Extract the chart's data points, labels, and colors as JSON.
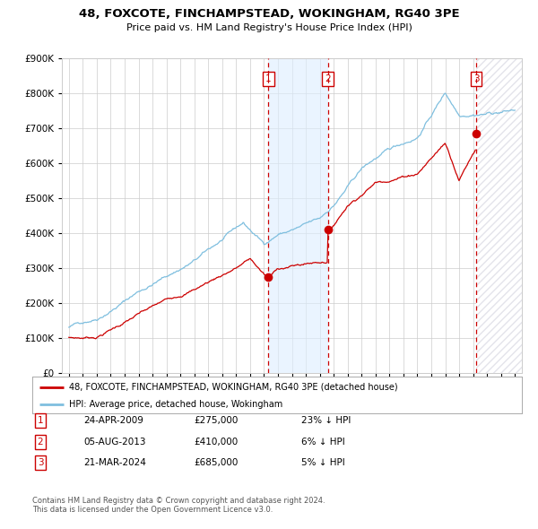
{
  "title": "48, FOXCOTE, FINCHAMPSTEAD, WOKINGHAM, RG40 3PE",
  "subtitle": "Price paid vs. HM Land Registry's House Price Index (HPI)",
  "legend_red": "48, FOXCOTE, FINCHAMPSTEAD, WOKINGHAM, RG40 3PE (detached house)",
  "legend_blue": "HPI: Average price, detached house, Wokingham",
  "footnote1": "Contains HM Land Registry data © Crown copyright and database right 2024.",
  "footnote2": "This data is licensed under the Open Government Licence v3.0.",
  "transactions": [
    {
      "num": 1,
      "date": "24-APR-2009",
      "price": 275000,
      "pct": "23%",
      "dir": "↓"
    },
    {
      "num": 2,
      "date": "05-AUG-2013",
      "price": 410000,
      "pct": "6%",
      "dir": "↓"
    },
    {
      "num": 3,
      "date": "21-MAR-2024",
      "price": 685000,
      "pct": "5%",
      "dir": "↓"
    }
  ],
  "sale_dates_decimal": [
    2009.31,
    2013.59,
    2024.22
  ],
  "sale_prices": [
    275000,
    410000,
    685000
  ],
  "hpi_color": "#7fbfdf",
  "price_color": "#cc0000",
  "dot_color": "#cc0000",
  "background_color": "#ffffff",
  "grid_color": "#cccccc",
  "shade_color": "#ddeeff",
  "ylim": [
    0,
    900000
  ],
  "xlim_start": 1994.5,
  "xlim_end": 2027.5,
  "yticks": [
    0,
    100000,
    200000,
    300000,
    400000,
    500000,
    600000,
    700000,
    800000,
    900000
  ]
}
